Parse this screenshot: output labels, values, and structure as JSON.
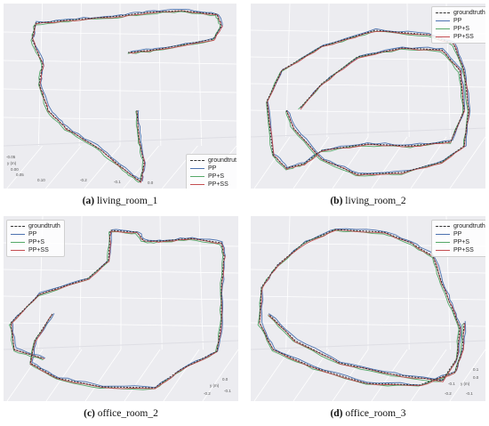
{
  "legend_labels": [
    "groundtruth",
    "PP",
    "PP+S",
    "PP+SS"
  ],
  "colors": {
    "groundtruth": "#333333",
    "PP": "#4c72b0",
    "PP+S": "#55a868",
    "PP+SS": "#c44e52",
    "plot_bg": "#ececf0"
  },
  "panels": [
    {
      "id": "living_room_1",
      "caption_tag": "(a)",
      "caption_name": "living_room_1",
      "ticks": [
        "-0.05",
        "y (m)",
        "0.00",
        "0.05",
        "0.10",
        "-0.2",
        "-0.1",
        "0.0"
      ]
    },
    {
      "id": "living_room_2",
      "caption_tag": "(b)",
      "caption_name": "living_room_2",
      "ticks": []
    },
    {
      "id": "office_room_2",
      "caption_tag": "(c)",
      "caption_name": "office_room_2",
      "ticks": [
        "y (m)",
        "0.0",
        "-0.2",
        "-0.1"
      ]
    },
    {
      "id": "office_room_3",
      "caption_tag": "(d)",
      "caption_name": "office_room_3",
      "ticks": [
        "-0.1",
        "y (m)",
        "0.0",
        "0.1",
        "-0.2",
        "-0.1"
      ]
    }
  ],
  "chart_data": [
    {
      "type": "line",
      "panel": "living_room_1",
      "series": [
        {
          "name": "groundtruth",
          "style": "dashed"
        },
        {
          "name": "PP",
          "style": "solid"
        },
        {
          "name": "PP+S",
          "style": "solid"
        },
        {
          "name": "PP+SS",
          "style": "solid"
        }
      ],
      "legend_position": "lower-right",
      "grid": true
    },
    {
      "type": "line",
      "panel": "living_room_2",
      "series": [
        {
          "name": "groundtruth",
          "style": "dashed"
        },
        {
          "name": "PP",
          "style": "solid"
        },
        {
          "name": "PP+S",
          "style": "solid"
        },
        {
          "name": "PP+SS",
          "style": "solid"
        }
      ],
      "legend_position": "upper-right",
      "grid": true
    },
    {
      "type": "line",
      "panel": "office_room_2",
      "series": [
        {
          "name": "groundtruth",
          "style": "dashed"
        },
        {
          "name": "PP",
          "style": "solid"
        },
        {
          "name": "PP+S",
          "style": "solid"
        },
        {
          "name": "PP+SS",
          "style": "solid"
        }
      ],
      "legend_position": "upper-left",
      "grid": true
    },
    {
      "type": "line",
      "panel": "office_room_3",
      "series": [
        {
          "name": "groundtruth",
          "style": "dashed"
        },
        {
          "name": "PP",
          "style": "solid"
        },
        {
          "name": "PP+S",
          "style": "solid"
        },
        {
          "name": "PP+SS",
          "style": "solid"
        }
      ],
      "legend_position": "upper-right",
      "grid": true
    }
  ]
}
